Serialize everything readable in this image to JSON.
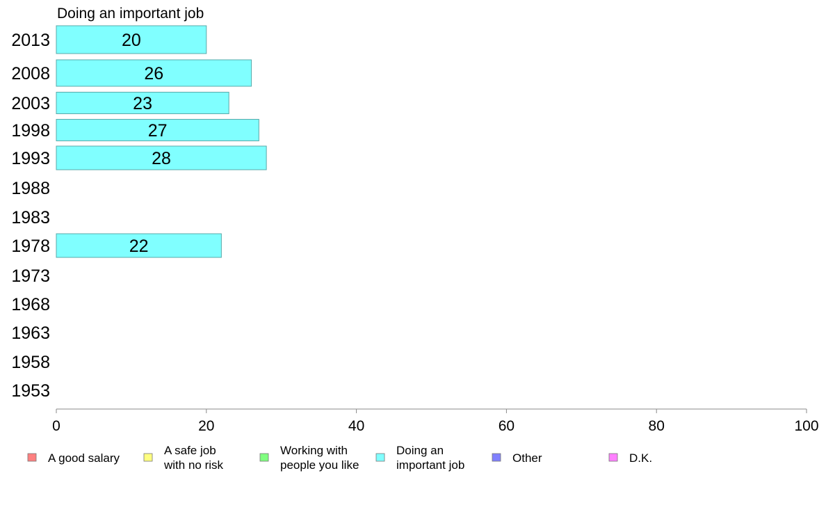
{
  "chart_data": {
    "type": "bar",
    "orientation": "horizontal",
    "title": "Doing an important job",
    "categories": [
      "2013",
      "2008",
      "2003",
      "1998",
      "1993",
      "1988",
      "1983",
      "1978",
      "1973",
      "1968",
      "1963",
      "1958",
      "1953"
    ],
    "series": [
      {
        "name": "Doing an important job",
        "color": "#80ffff",
        "values": [
          20,
          26,
          23,
          27,
          28,
          null,
          null,
          22,
          null,
          null,
          null,
          null,
          null
        ]
      }
    ],
    "xlim": [
      0,
      100
    ],
    "xticks": [
      0,
      20,
      40,
      60,
      80,
      100
    ],
    "grid": false,
    "legend": {
      "placement": "bottom",
      "entries": [
        {
          "lines": [
            "A good salary"
          ],
          "color": "#ff8080"
        },
        {
          "lines": [
            "A safe job",
            "with no risk"
          ],
          "color": "#ffff80"
        },
        {
          "lines": [
            "Working with",
            "people you like"
          ],
          "color": "#80ff80"
        },
        {
          "lines": [
            "Doing an",
            "important job"
          ],
          "color": "#80ffff"
        },
        {
          "lines": [
            "Other"
          ],
          "color": "#8080ff"
        },
        {
          "lines": [
            "D.K."
          ],
          "color": "#ff80ff"
        }
      ]
    }
  }
}
